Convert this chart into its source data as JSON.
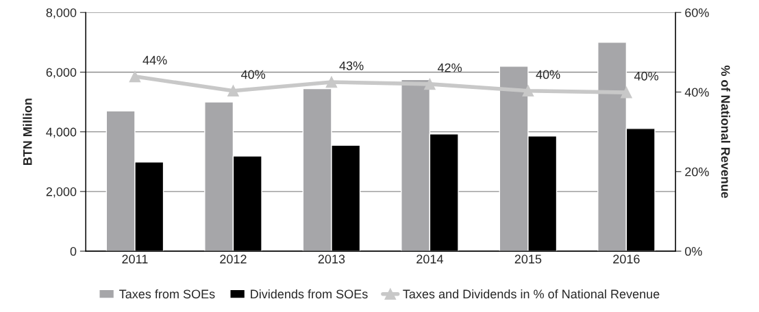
{
  "chart_data": {
    "type": "bar",
    "categories": [
      "2011",
      "2012",
      "2013",
      "2014",
      "2015",
      "2016"
    ],
    "ylabel": "BTN Million",
    "y2label": "% of National Revenue",
    "ylim": [
      0,
      8000
    ],
    "yticks": [
      {
        "value": 0,
        "label": "0"
      },
      {
        "value": 2000,
        "label": "2,000"
      },
      {
        "value": 4000,
        "label": "4,000"
      },
      {
        "value": 6000,
        "label": "6,000"
      },
      {
        "value": 8000,
        "label": "8,000"
      }
    ],
    "y2lim": [
      0,
      60
    ],
    "y2ticks": [
      {
        "value": 0,
        "label": "0%"
      },
      {
        "value": 20,
        "label": "20%"
      },
      {
        "value": 40,
        "label": "40%"
      },
      {
        "value": 60,
        "label": "60%"
      }
    ],
    "grid": "y",
    "legend": "bottom",
    "series": [
      {
        "name": "Taxes from SOEs",
        "color": "#a6a6a9",
        "values": [
          4700,
          5000,
          5450,
          5750,
          6200,
          7000
        ]
      },
      {
        "name": "Dividends from SOEs",
        "color": "#000000",
        "values": [
          2990,
          3190,
          3550,
          3930,
          3860,
          4110
        ]
      },
      {
        "name": "Taxes and Dividends in % of National Revenue",
        "type": "line",
        "axis": "y2",
        "color": "#c8c8c8",
        "marker": "triangle",
        "values": [
          43.9,
          40.3,
          42.5,
          42.0,
          40.3,
          39.9
        ],
        "value_labels": [
          "44%",
          "40%",
          "43%",
          "42%",
          "40%",
          "40%"
        ]
      }
    ]
  }
}
